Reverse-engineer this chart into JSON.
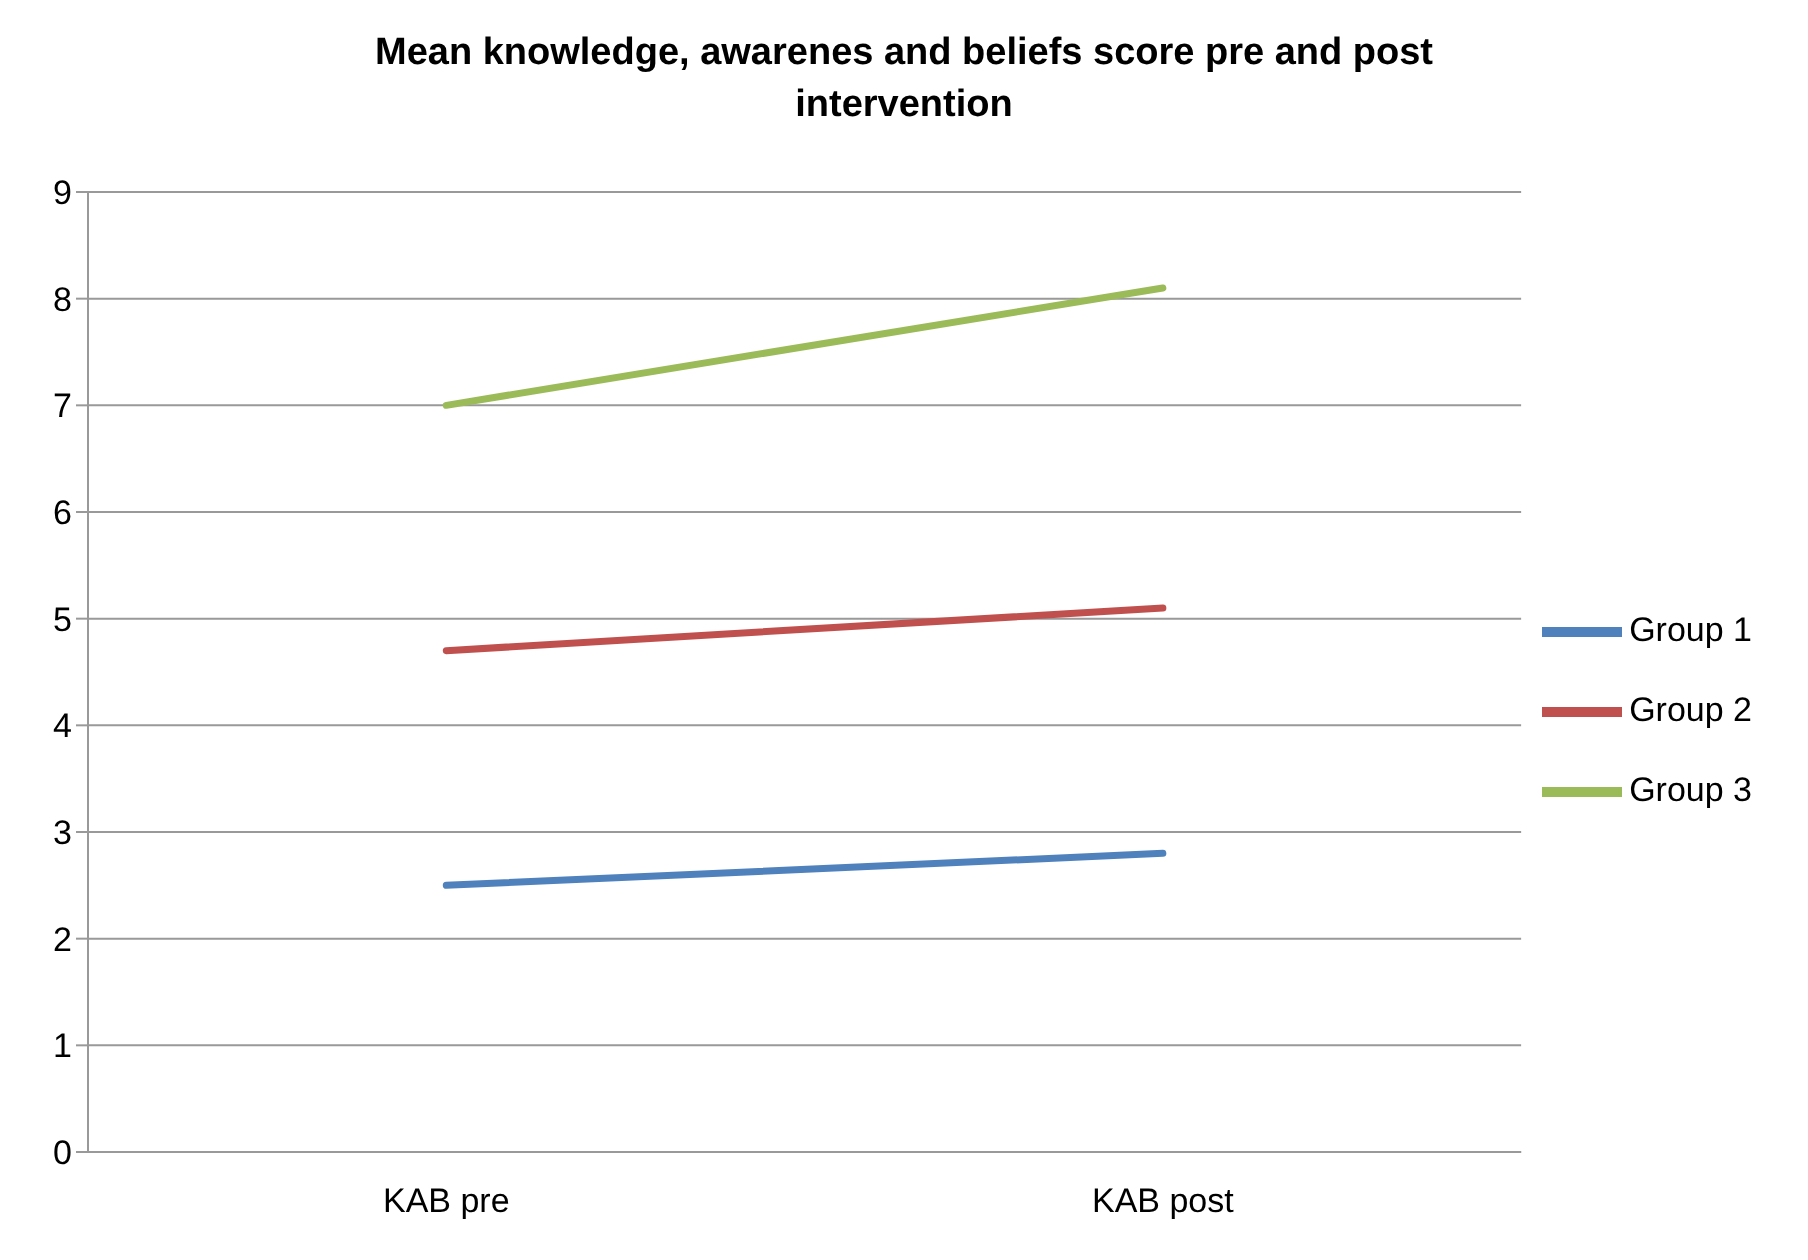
{
  "chart_data": {
    "type": "line",
    "title": "Mean knowledge, awarenes and beliefs score pre and post intervention",
    "categories": [
      "KAB pre",
      "KAB post"
    ],
    "series": [
      {
        "name": "Group 3",
        "color": "#9bbb59",
        "values": [
          7.0,
          8.1
        ]
      },
      {
        "name": "Group 2",
        "color": "#c0504d",
        "values": [
          4.7,
          5.1
        ]
      },
      {
        "name": "Group 1",
        "color": "#4f81bd",
        "values": [
          2.5,
          2.8
        ]
      }
    ],
    "ylim": [
      0,
      9
    ],
    "yticks": [
      0,
      1,
      2,
      3,
      4,
      5,
      6,
      7,
      8,
      9
    ],
    "grid": "y",
    "legend": "right",
    "marker": "none"
  }
}
